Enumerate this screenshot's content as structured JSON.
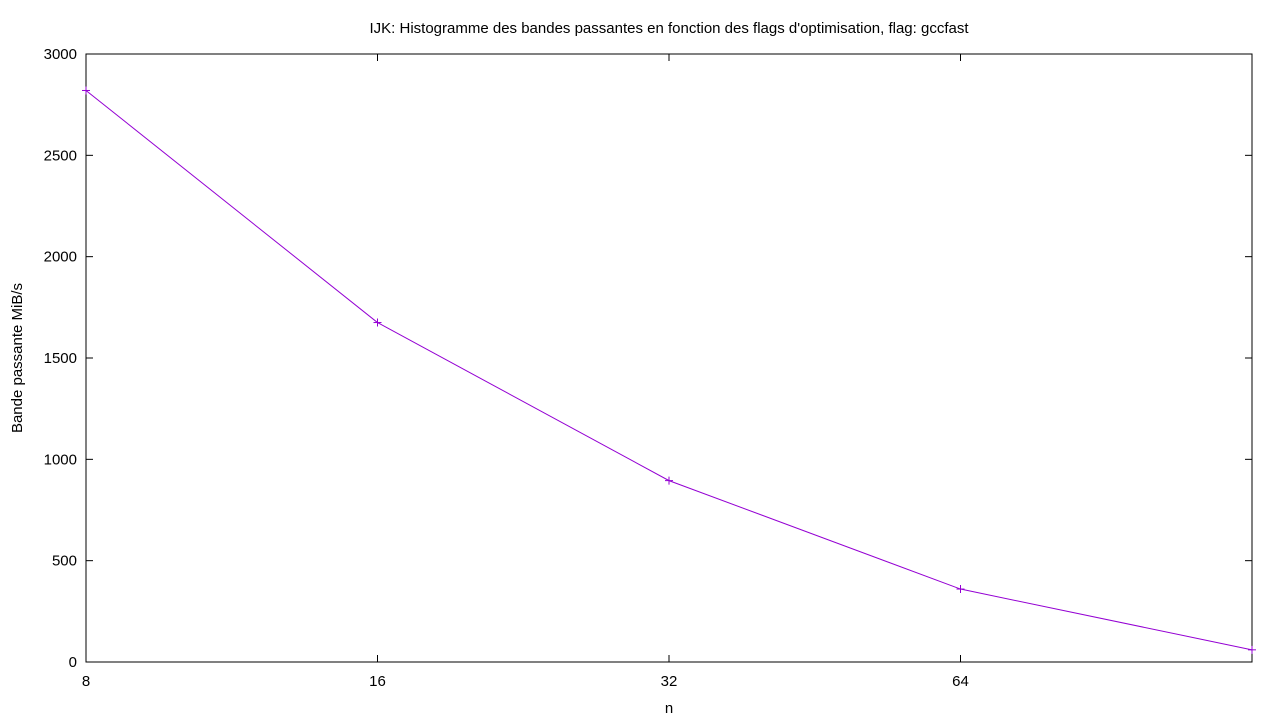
{
  "chart_data": {
    "type": "line",
    "title": "IJK: Histogramme des bandes passantes en fonction des flags d'optimisation, flag: gccfast",
    "xlabel": "n",
    "ylabel": "Bande passante MiB/s",
    "x_scale": "log2",
    "x_ticks": [
      8,
      16,
      32,
      64
    ],
    "x_tick_labels": [
      "8",
      "16",
      "32",
      "64"
    ],
    "xlim": [
      8,
      128
    ],
    "y_ticks": [
      0,
      500,
      1000,
      1500,
      2000,
      2500,
      3000
    ],
    "y_tick_labels": [
      "0",
      "500",
      "1000",
      "1500",
      "2000",
      "2500",
      "3000"
    ],
    "ylim": [
      0,
      3000
    ],
    "grid": false,
    "legend": "none",
    "series": [
      {
        "x": [
          8,
          16,
          32,
          64,
          128
        ],
        "y": [
          2820,
          1675,
          895,
          360,
          60
        ],
        "color": "#9400d3",
        "marker": "plus"
      }
    ]
  }
}
